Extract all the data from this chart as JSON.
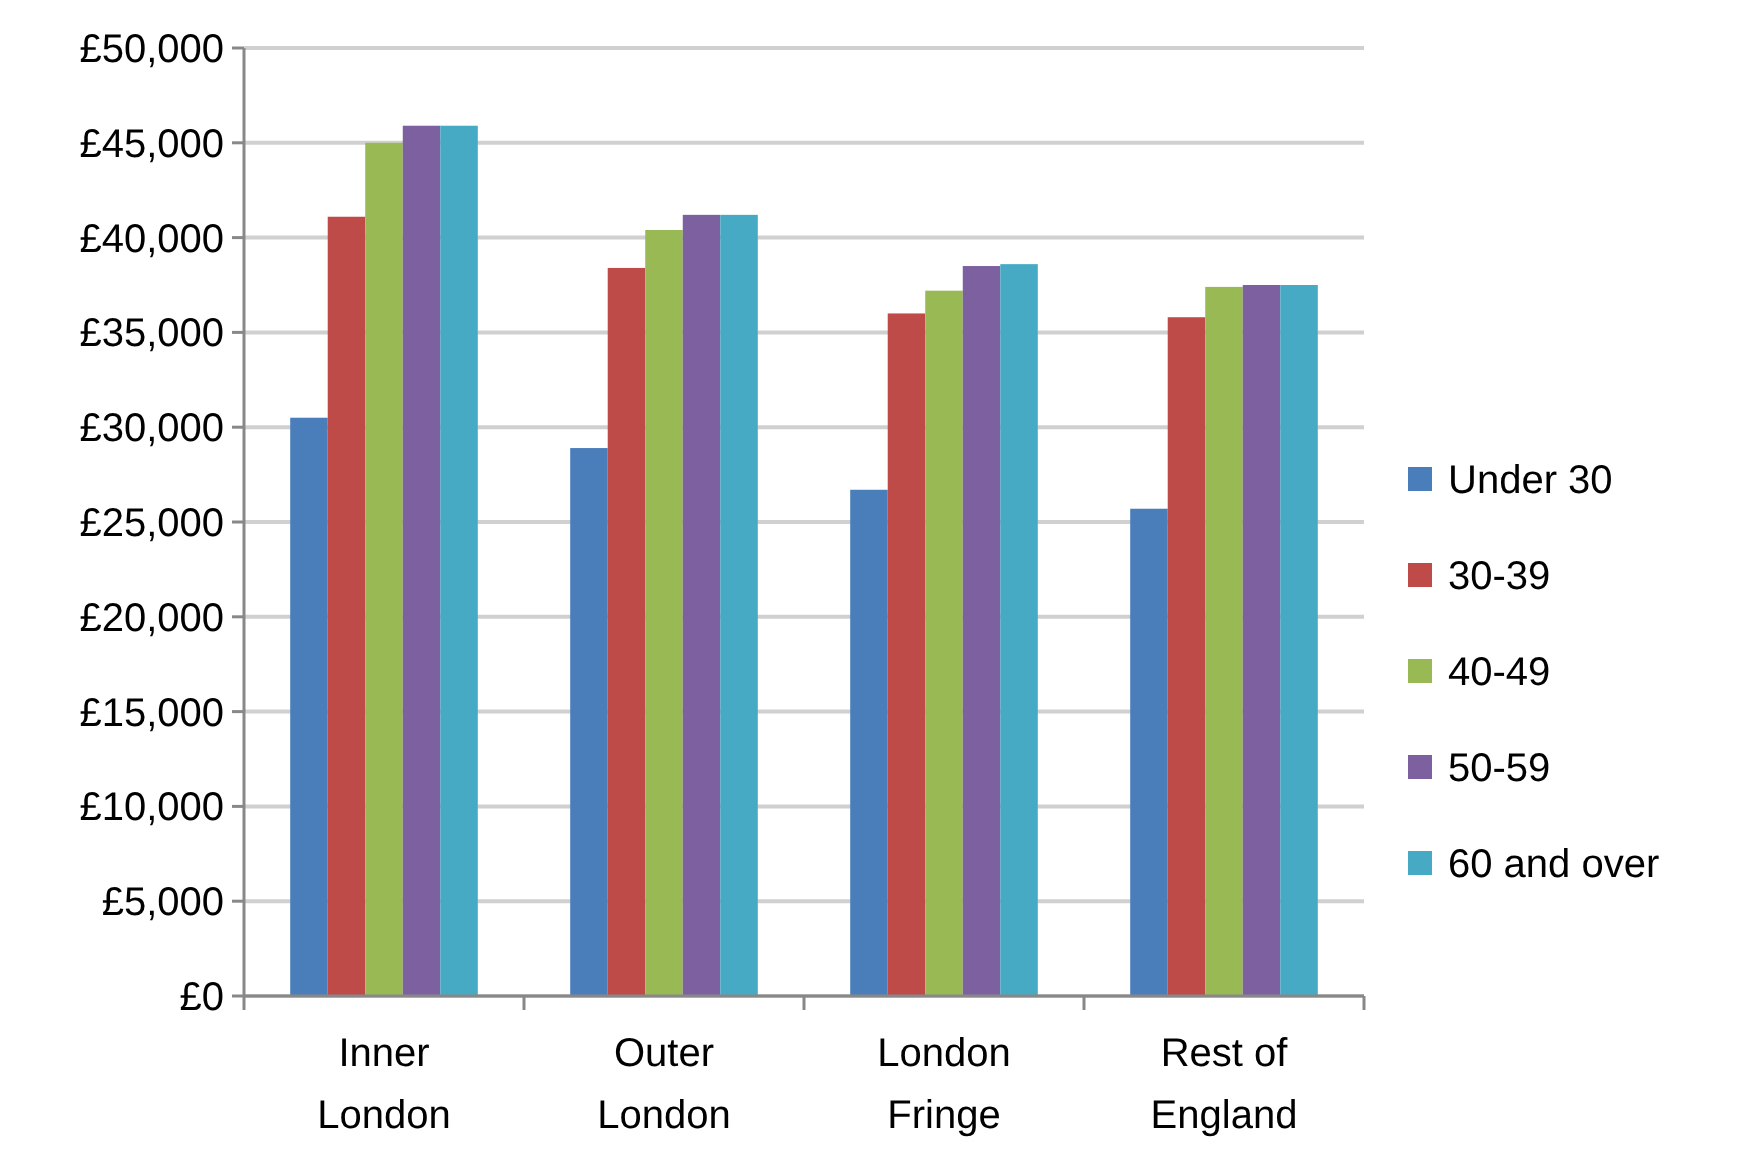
{
  "chart_data": {
    "type": "bar",
    "categories": [
      "Inner London",
      "Outer London",
      "London Fringe",
      "Rest of England"
    ],
    "series": [
      {
        "name": "Under 30",
        "color": "#4a7ebb",
        "values": [
          30500,
          28900,
          26700,
          25700
        ]
      },
      {
        "name": "30-39",
        "color": "#be4b48",
        "values": [
          41100,
          38400,
          36000,
          35800
        ]
      },
      {
        "name": "40-49",
        "color": "#98b954",
        "values": [
          45000,
          40400,
          37200,
          37400
        ]
      },
      {
        "name": "50-59",
        "color": "#7d60a0",
        "values": [
          45900,
          41200,
          38500,
          37500
        ]
      },
      {
        "name": "60 and over",
        "color": "#46aac5",
        "values": [
          45900,
          41200,
          38600,
          37500
        ]
      }
    ],
    "ylim": [
      0,
      50000
    ],
    "yticks": [
      {
        "value": 0,
        "label": "£0"
      },
      {
        "value": 5000,
        "label": "£5,000"
      },
      {
        "value": 10000,
        "label": "£10,000"
      },
      {
        "value": 15000,
        "label": "£15,000"
      },
      {
        "value": 20000,
        "label": "£20,000"
      },
      {
        "value": 25000,
        "label": "£25,000"
      },
      {
        "value": 30000,
        "label": "£30,000"
      },
      {
        "value": 35000,
        "label": "£35,000"
      },
      {
        "value": 40000,
        "label": "£40,000"
      },
      {
        "value": 45000,
        "label": "£45,000"
      },
      {
        "value": 50000,
        "label": "£50,000"
      }
    ],
    "grid": "y",
    "legend": "right"
  }
}
